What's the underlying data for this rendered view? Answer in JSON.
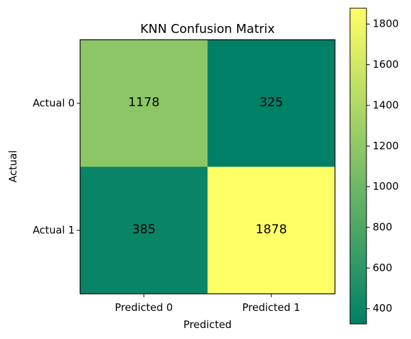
{
  "chart_data": {
    "type": "heatmap",
    "title": "KNN Confusion Matrix",
    "xlabel": "Predicted",
    "ylabel": "Actual",
    "x_categories": [
      "Predicted 0",
      "Predicted 1"
    ],
    "y_categories": [
      "Actual 0",
      "Actual 1"
    ],
    "values": [
      [
        1178,
        325
      ],
      [
        385,
        1878
      ]
    ],
    "colormap": "summer",
    "colorbar": {
      "range": [
        325,
        1878
      ],
      "ticks": [
        400,
        600,
        800,
        1000,
        1200,
        1400,
        1600,
        1800
      ],
      "tick_labels": [
        "400",
        "600",
        "800",
        "1000",
        "1200",
        "1400",
        "1600",
        "1800"
      ]
    },
    "grid": false
  }
}
